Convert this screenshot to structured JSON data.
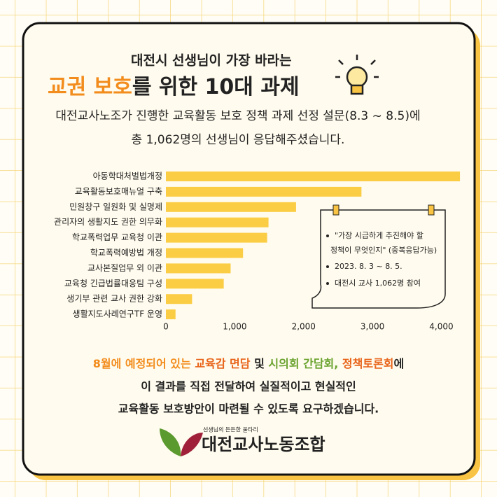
{
  "header": {
    "line1": "대전시 선생님이 가장 바라는",
    "highlight": "교권 보호",
    "rest": "를 위한 10대 과제"
  },
  "intro": [
    "대전교사노조가 진행한 교육활동 보호 정책 과제 선정 설문(8.3 ~ 8.5)에",
    "총 1,062명의 선생님이 응답해주셨습니다."
  ],
  "chart_data": {
    "type": "hbar",
    "categories": [
      "아동학대처벌법개정",
      "교육활동보호매뉴얼 구축",
      "민원창구 일원화 및 실명제",
      "관리자의 생활지도 권한 의무화",
      "학교폭력업무 교육청 이관",
      "학교폭력예방법 개정",
      "교사본질업무 외 이관",
      "교육청 긴급법률대응팀 구성",
      "생기부 관련 교사 권한 강화",
      "생활지도사례연구TF 운영"
    ],
    "values": [
      4270,
      2840,
      1890,
      1490,
      1470,
      1120,
      940,
      840,
      380,
      140
    ],
    "color": "#fbcd45",
    "xlim": [
      0,
      4300
    ],
    "xticks": [
      0,
      {
        "value": 1000,
        "label": "1,000"
      },
      {
        "value": 2000,
        "label": "2,000"
      },
      {
        "value": 3000,
        "label": "3,000"
      },
      {
        "value": 4000,
        "label": "4,000"
      }
    ],
    "grid": false
  },
  "note": [
    "\"가장 시급하게 추진해야 할",
    "정책이 무엇인지\" (중복응답가능)",
    "2023. 8. 3 ~ 8. 5.",
    "대전시 교사 1,062명 참여"
  ],
  "closing": {
    "p1": "8월에 예정되어 있는 ",
    "p2": "교육감 면담",
    "p3": " 및 ",
    "p4": "시의회 간담회, ",
    "p5": "정책토론회",
    "p6": "에",
    "line2": "이 결과를 직접 전달하여 실질적이고 현실적인",
    "line3": "교육활동 보호방안이 마련될 수 있도록 요구하겠습니다."
  },
  "logo": {
    "slogan": "선생님의 든든한 울타리",
    "name": "대전교사노동조합"
  }
}
